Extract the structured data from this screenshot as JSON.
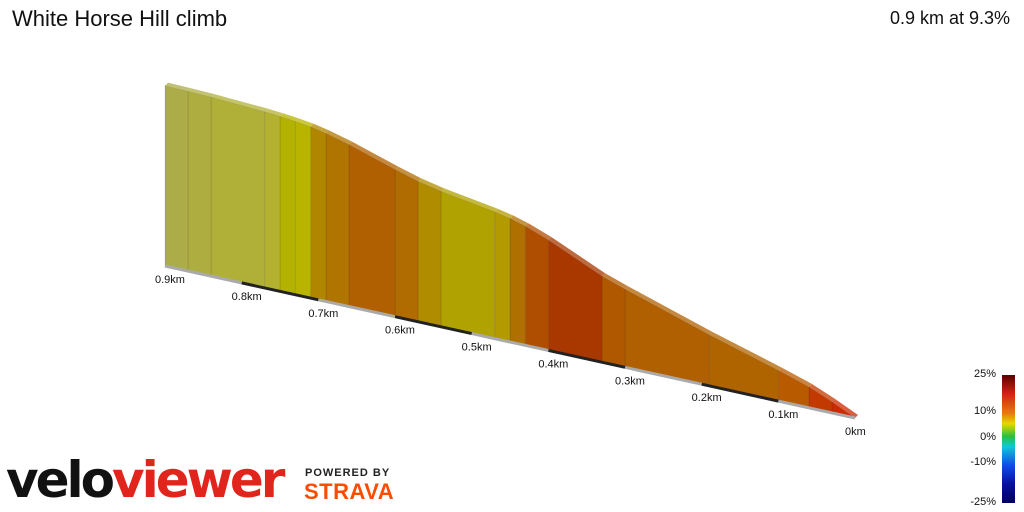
{
  "title": "White Horse Hill climb",
  "summary": "0.9 km at 9.3%",
  "branding": {
    "logo_velo": "velo",
    "logo_viewer": "viewer",
    "powered_by": "POWERED BY",
    "strava": "STRAVA"
  },
  "gradient_scale": {
    "labels": [
      "25%",
      "10%",
      "0%",
      "-10%",
      "-25%"
    ]
  },
  "chart_data": {
    "type": "area",
    "title": "White Horse Hill climb",
    "x_unit": "km",
    "distance_ticks": [
      "0km",
      "0.1km",
      "0.2km",
      "0.3km",
      "0.4km",
      "0.5km",
      "0.6km",
      "0.7km",
      "0.8km",
      "0.9km"
    ],
    "segments": [
      {
        "start_km": 0.0,
        "end_km": 0.03,
        "gradient_pct": 18,
        "color": "#cc2a00"
      },
      {
        "start_km": 0.03,
        "end_km": 0.06,
        "gradient_pct": 16,
        "color": "#c23a00"
      },
      {
        "start_km": 0.06,
        "end_km": 0.1,
        "gradient_pct": 12,
        "color": "#b85a00"
      },
      {
        "start_km": 0.1,
        "end_km": 0.19,
        "gradient_pct": 11,
        "color": "#b06400"
      },
      {
        "start_km": 0.19,
        "end_km": 0.3,
        "gradient_pct": 12,
        "color": "#b06000"
      },
      {
        "start_km": 0.3,
        "end_km": 0.33,
        "gradient_pct": 13,
        "color": "#b05800"
      },
      {
        "start_km": 0.33,
        "end_km": 0.4,
        "gradient_pct": 17,
        "color": "#a83800"
      },
      {
        "start_km": 0.4,
        "end_km": 0.43,
        "gradient_pct": 14,
        "color": "#b04e00"
      },
      {
        "start_km": 0.43,
        "end_km": 0.45,
        "gradient_pct": 11,
        "color": "#b07000"
      },
      {
        "start_km": 0.45,
        "end_km": 0.47,
        "gradient_pct": 8,
        "color": "#b39a00"
      },
      {
        "start_km": 0.47,
        "end_km": 0.54,
        "gradient_pct": 6,
        "color": "#b0a200"
      },
      {
        "start_km": 0.54,
        "end_km": 0.57,
        "gradient_pct": 8,
        "color": "#b08c00"
      },
      {
        "start_km": 0.57,
        "end_km": 0.6,
        "gradient_pct": 11,
        "color": "#b06c00"
      },
      {
        "start_km": 0.6,
        "end_km": 0.66,
        "gradient_pct": 12,
        "color": "#b06000"
      },
      {
        "start_km": 0.66,
        "end_km": 0.69,
        "gradient_pct": 10,
        "color": "#b07400"
      },
      {
        "start_km": 0.69,
        "end_km": 0.71,
        "gradient_pct": 8,
        "color": "#b08600"
      },
      {
        "start_km": 0.71,
        "end_km": 0.73,
        "gradient_pct": 5,
        "color": "#b8b400"
      },
      {
        "start_km": 0.73,
        "end_km": 0.75,
        "gradient_pct": 4,
        "color": "#b4b200"
      },
      {
        "start_km": 0.75,
        "end_km": 0.77,
        "gradient_pct": 3,
        "color": "#b4b030"
      },
      {
        "start_km": 0.77,
        "end_km": 0.84,
        "gradient_pct": 2,
        "color": "#b0b038"
      },
      {
        "start_km": 0.84,
        "end_km": 0.87,
        "gradient_pct": 1,
        "color": "#aeae40"
      },
      {
        "start_km": 0.87,
        "end_km": 0.9,
        "gradient_pct": 1,
        "color": "#acac48"
      }
    ]
  }
}
